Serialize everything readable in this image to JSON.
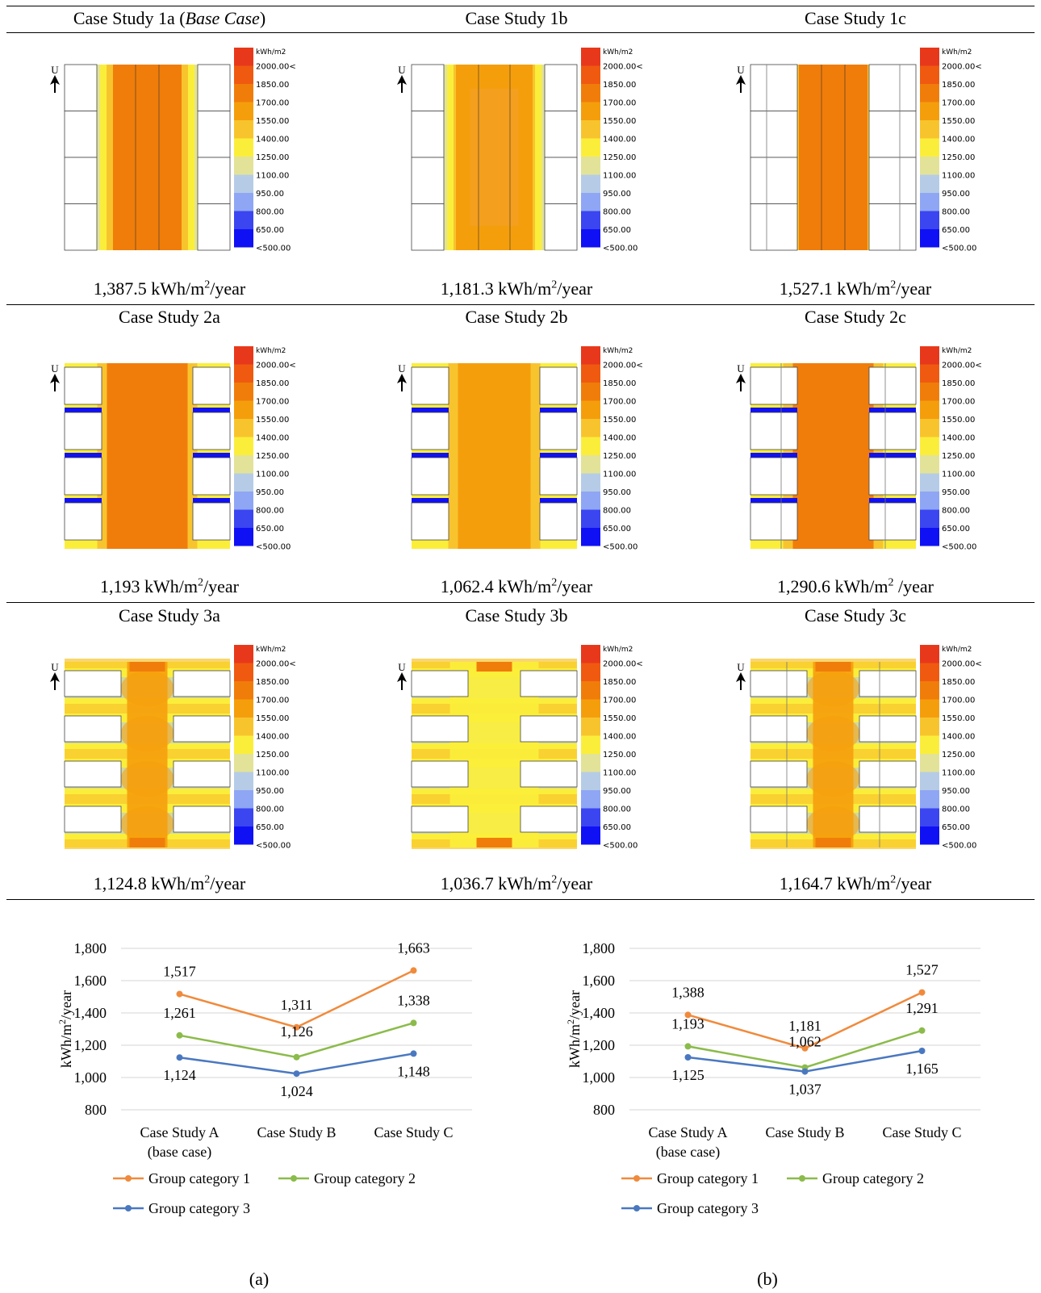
{
  "scale": {
    "unit": "kWh/m2",
    "levels": [
      "2000.00<",
      "1850.00",
      "1700.00",
      "1550.00",
      "1400.00",
      "1250.00",
      "1100.00",
      "950.00",
      "800.00",
      "650.00",
      "<500.00"
    ],
    "colors": [
      "#e8381b",
      "#ef5a10",
      "#f07d0a",
      "#f59e0c",
      "#f8c42e",
      "#fbee3b",
      "#e2e398",
      "#b6cce6",
      "#8fa6f4",
      "#3b45f0",
      "#1010f5"
    ]
  },
  "north_label": "U",
  "cases": [
    {
      "title": "Case Study 1a (",
      "title_em": "Base Case",
      "title_end": ")",
      "energy": "1,387.5 kWh/m",
      "sup": "2",
      "suffix": "/year"
    },
    {
      "title": "Case Study 1b",
      "energy": "1,181.3 kWh/m",
      "sup": "2",
      "suffix": "/year"
    },
    {
      "title": "Case Study 1c",
      "energy": "1,527.1 kWh/m",
      "sup": "2",
      "suffix": "/year"
    },
    {
      "title": "Case Study 2a",
      "energy": "1,193 kWh/m",
      "sup": "2",
      "suffix": "/year"
    },
    {
      "title": "Case Study 2b",
      "energy": "1,062.4 kWh/m",
      "sup": "2",
      "suffix": "/year"
    },
    {
      "title": "Case Study 2c",
      "energy": "1,290.6 kWh/m",
      "sup": "2",
      "suffix": " /year"
    },
    {
      "title": "Case Study 3a",
      "energy": "1,124.8 kWh/m",
      "sup": "2",
      "suffix": "/year"
    },
    {
      "title": "Case Study 3b",
      "energy": "1,036.7 kWh/m",
      "sup": "2",
      "suffix": "/year"
    },
    {
      "title": "Case Study 3c",
      "energy": "1,164.7 kWh/m",
      "sup": "2",
      "suffix": "/year"
    }
  ],
  "chart_data": [
    {
      "type": "line",
      "panel_label": "(a)",
      "ylabel": "kWh/m2/year",
      "ylim": [
        800,
        1800
      ],
      "yticks": [
        800,
        1000,
        1200,
        1400,
        1600,
        1800
      ],
      "ytick_labels": [
        "800",
        "1,000",
        "1,200",
        "1,400",
        "1,600",
        "1,800"
      ],
      "categories": [
        [
          "Case Study A",
          "(base case)"
        ],
        [
          "Case Study B"
        ],
        [
          "Case Study C"
        ]
      ],
      "grid": true,
      "legend": "bottom",
      "series": [
        {
          "name": "Group category 1",
          "color": "#f08a3c",
          "values": [
            1517,
            1311,
            1663
          ],
          "labels": [
            "1,517",
            "1,311",
            "1,663"
          ]
        },
        {
          "name": "Group category 2",
          "color": "#8bbb4a",
          "values": [
            1261,
            1126,
            1338
          ],
          "labels": [
            "1,261",
            "1,126",
            "1,338"
          ]
        },
        {
          "name": "Group category 3",
          "color": "#4a78c0",
          "values": [
            1124,
            1024,
            1148
          ],
          "labels": [
            "1,124",
            "1,024",
            "1,148"
          ]
        }
      ]
    },
    {
      "type": "line",
      "panel_label": "(b)",
      "ylabel": "kWh/m2/year",
      "ylim": [
        800,
        1800
      ],
      "yticks": [
        800,
        1000,
        1200,
        1400,
        1600,
        1800
      ],
      "ytick_labels": [
        "800",
        "1,000",
        "1,200",
        "1,400",
        "1,600",
        "1,800"
      ],
      "categories": [
        [
          "Case Study A",
          "(base case)"
        ],
        [
          "Case Study B"
        ],
        [
          "Case Study C"
        ]
      ],
      "grid": true,
      "legend": "bottom",
      "series": [
        {
          "name": "Group category 1",
          "color": "#f08a3c",
          "values": [
            1388,
            1181,
            1527
          ],
          "labels": [
            "1,388",
            "1,181",
            "1,527"
          ]
        },
        {
          "name": "Group category 2",
          "color": "#8bbb4a",
          "values": [
            1193,
            1062,
            1291
          ],
          "labels": [
            "1,193",
            "1,062",
            "1,291"
          ]
        },
        {
          "name": "Group category 3",
          "color": "#4a78c0",
          "values": [
            1125,
            1037,
            1165
          ],
          "labels": [
            "1,125",
            "1,037",
            "1,165"
          ]
        }
      ]
    }
  ]
}
